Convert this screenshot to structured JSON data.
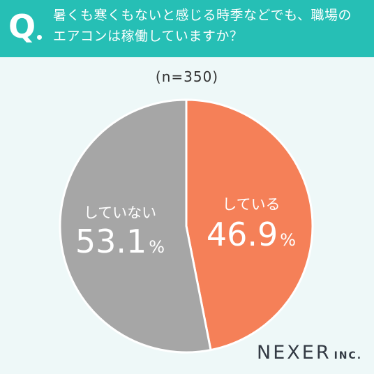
{
  "question": {
    "mark": "Q",
    "line1": "暑くも寒くもないと感じる時季などでも、職場の",
    "line2": "エアコンは稼働していますか？"
  },
  "sample_size": "(n=350)",
  "brand": {
    "name": "NEXER",
    "suffix": "INC."
  },
  "colors": {
    "header": "#26bfb5",
    "background": "#eef8f8",
    "yes": "#f58058",
    "no": "#a6a6a6"
  },
  "chart_data": {
    "type": "pie",
    "title": "",
    "slices": [
      {
        "label": "している",
        "value": 46.9,
        "display": "46.9",
        "unit": "%",
        "color": "#f58058"
      },
      {
        "label": "していない",
        "value": 53.1,
        "display": "53.1",
        "unit": "%",
        "color": "#a6a6a6"
      }
    ],
    "start": "12 o'clock",
    "direction": "clockwise",
    "legend": "none"
  }
}
